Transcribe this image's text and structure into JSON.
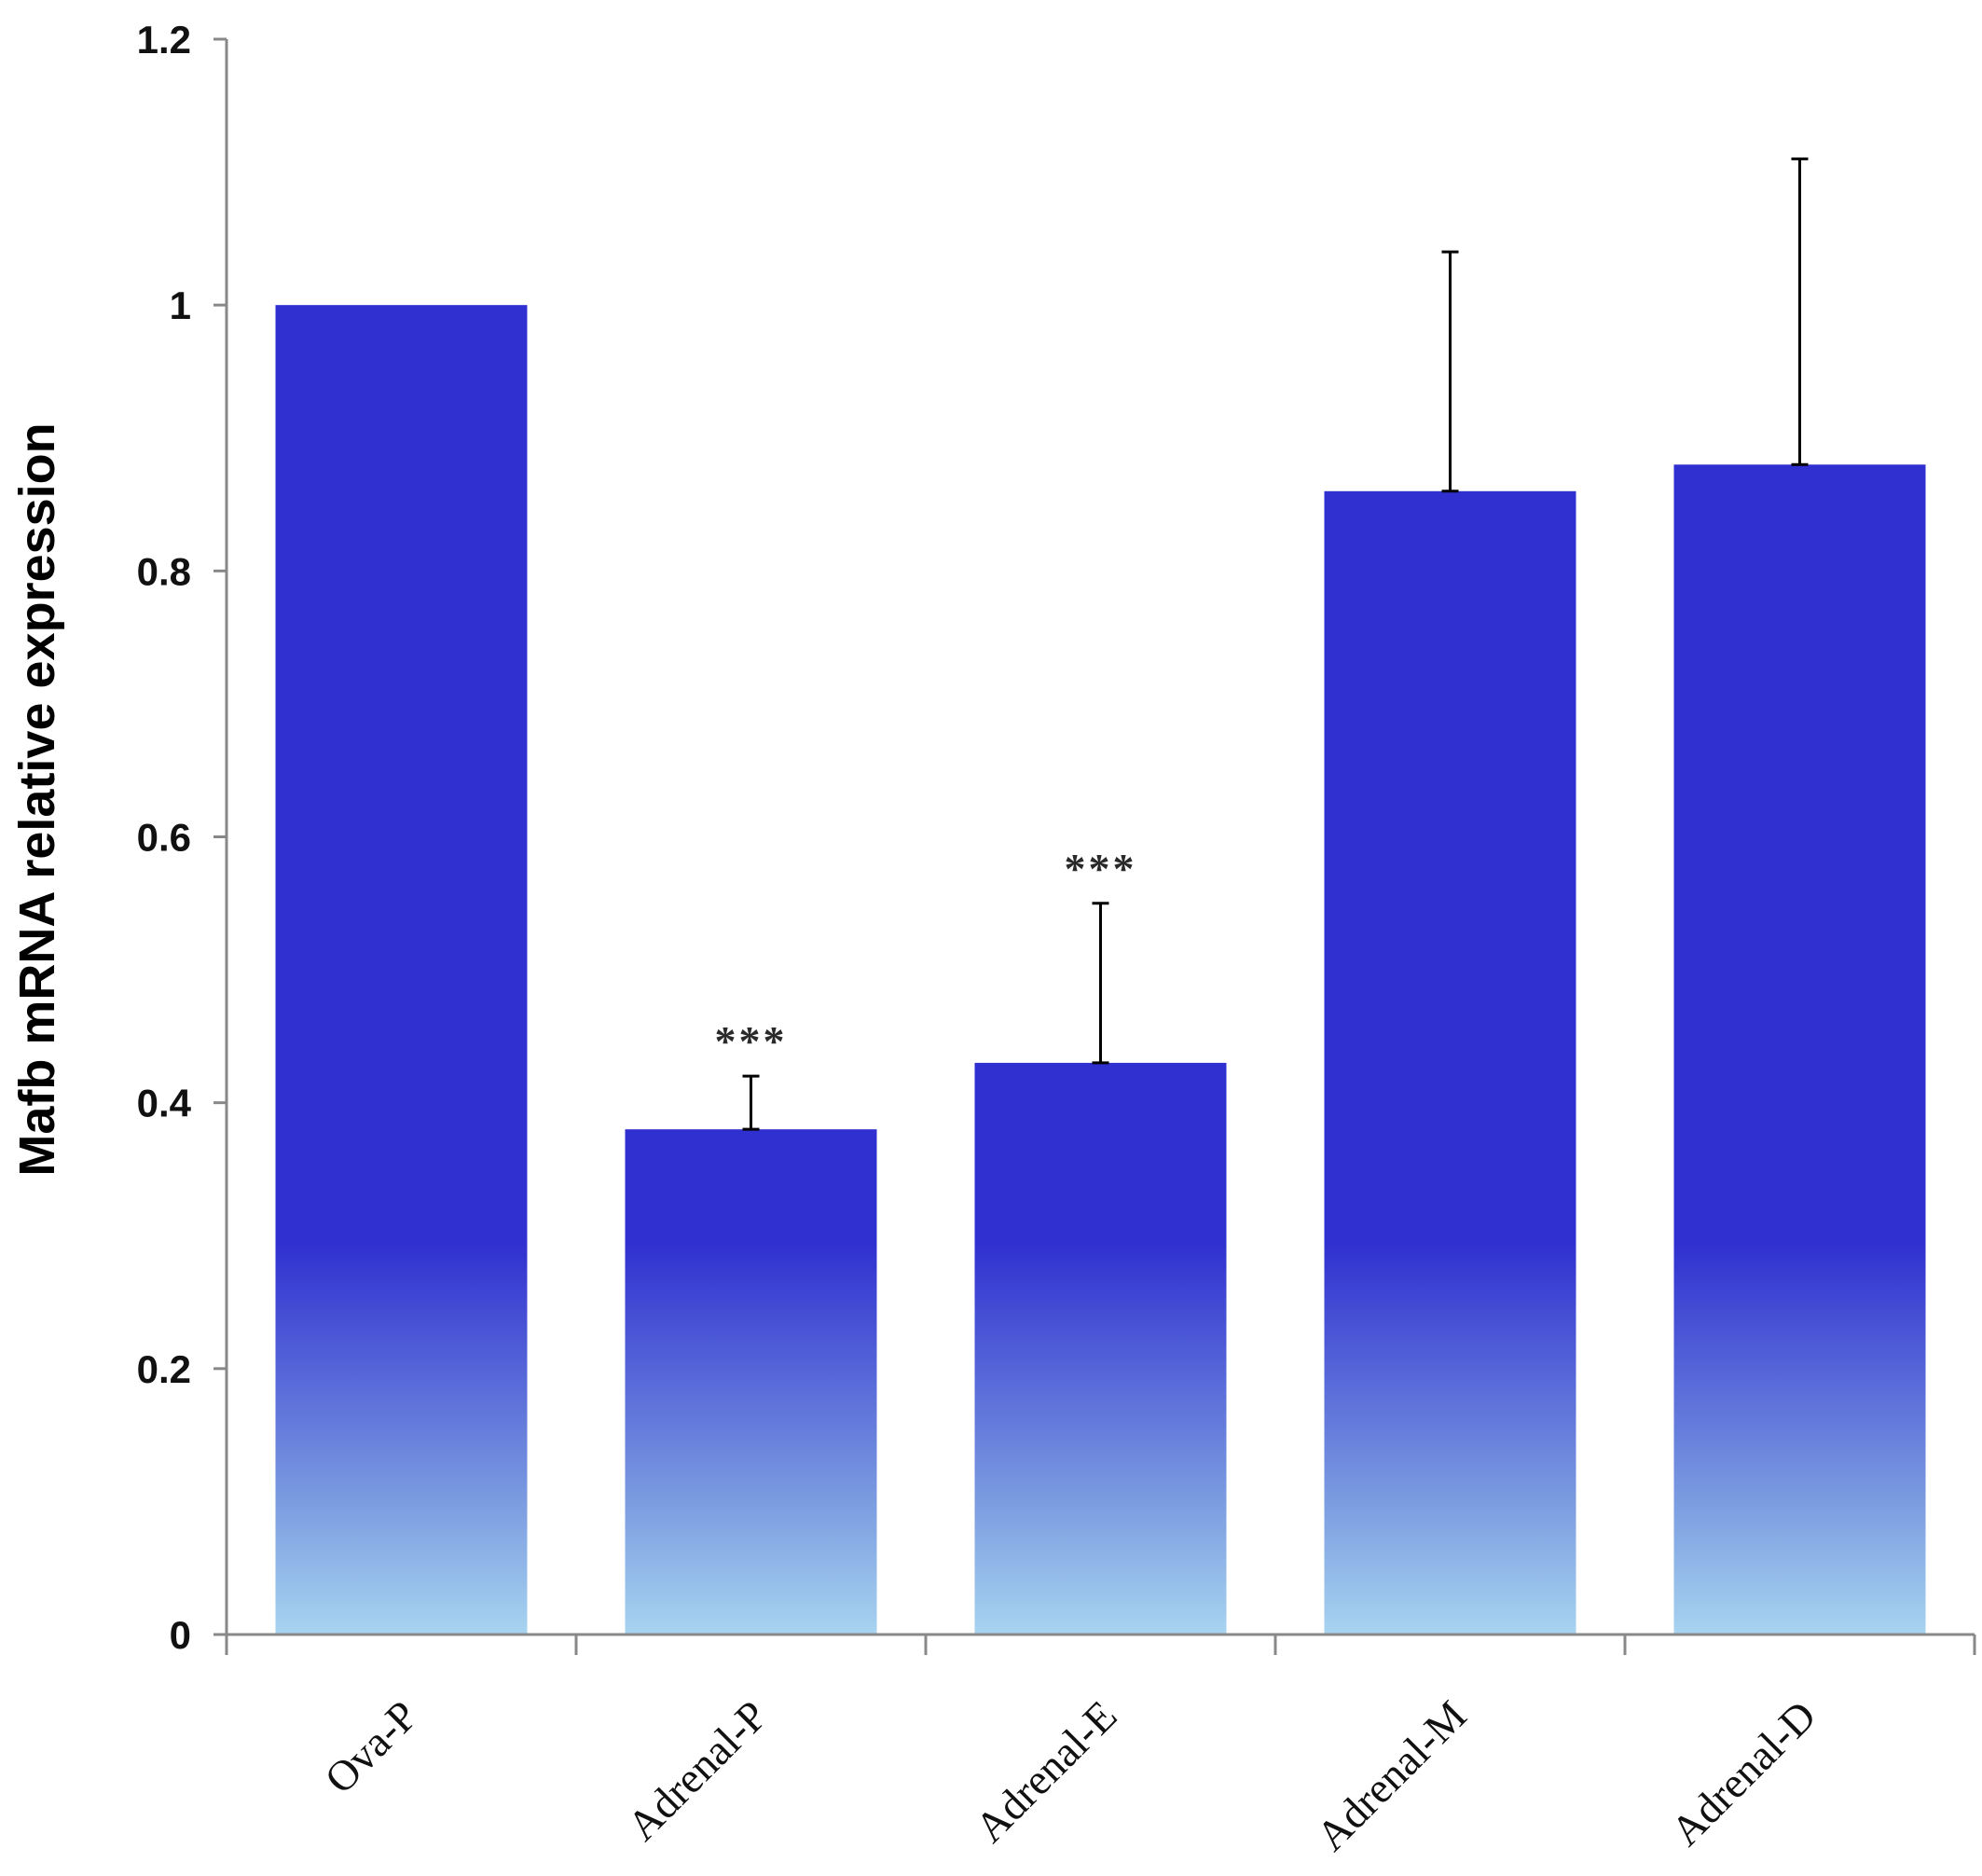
{
  "chart_data": {
    "type": "bar",
    "title": "",
    "xlabel": "",
    "ylabel": "Mafb mRNA relative expression",
    "ylim": [
      0,
      1.2
    ],
    "yticks": [
      0,
      0.2,
      0.4,
      0.6,
      0.8,
      1,
      1.2
    ],
    "ytick_labels": [
      "0",
      "0.2",
      "0.4",
      "0.6",
      "0.8",
      "1",
      "1.2"
    ],
    "categories": [
      "Ova-P",
      "Adrenal-P",
      "Adrenal-E",
      "Adrenal-M",
      "Adrenal-D"
    ],
    "values": [
      1.0,
      0.38,
      0.43,
      0.86,
      0.88
    ],
    "errors": [
      null,
      0.04,
      0.12,
      0.18,
      0.23
    ],
    "annotations": [
      "",
      "***",
      "***",
      "",
      ""
    ],
    "grid": false,
    "colors": {
      "bar_top": "#3030d0",
      "bar_bottom": "#a8d4f0",
      "axis": "#888888",
      "error_bar": "#000000"
    }
  }
}
